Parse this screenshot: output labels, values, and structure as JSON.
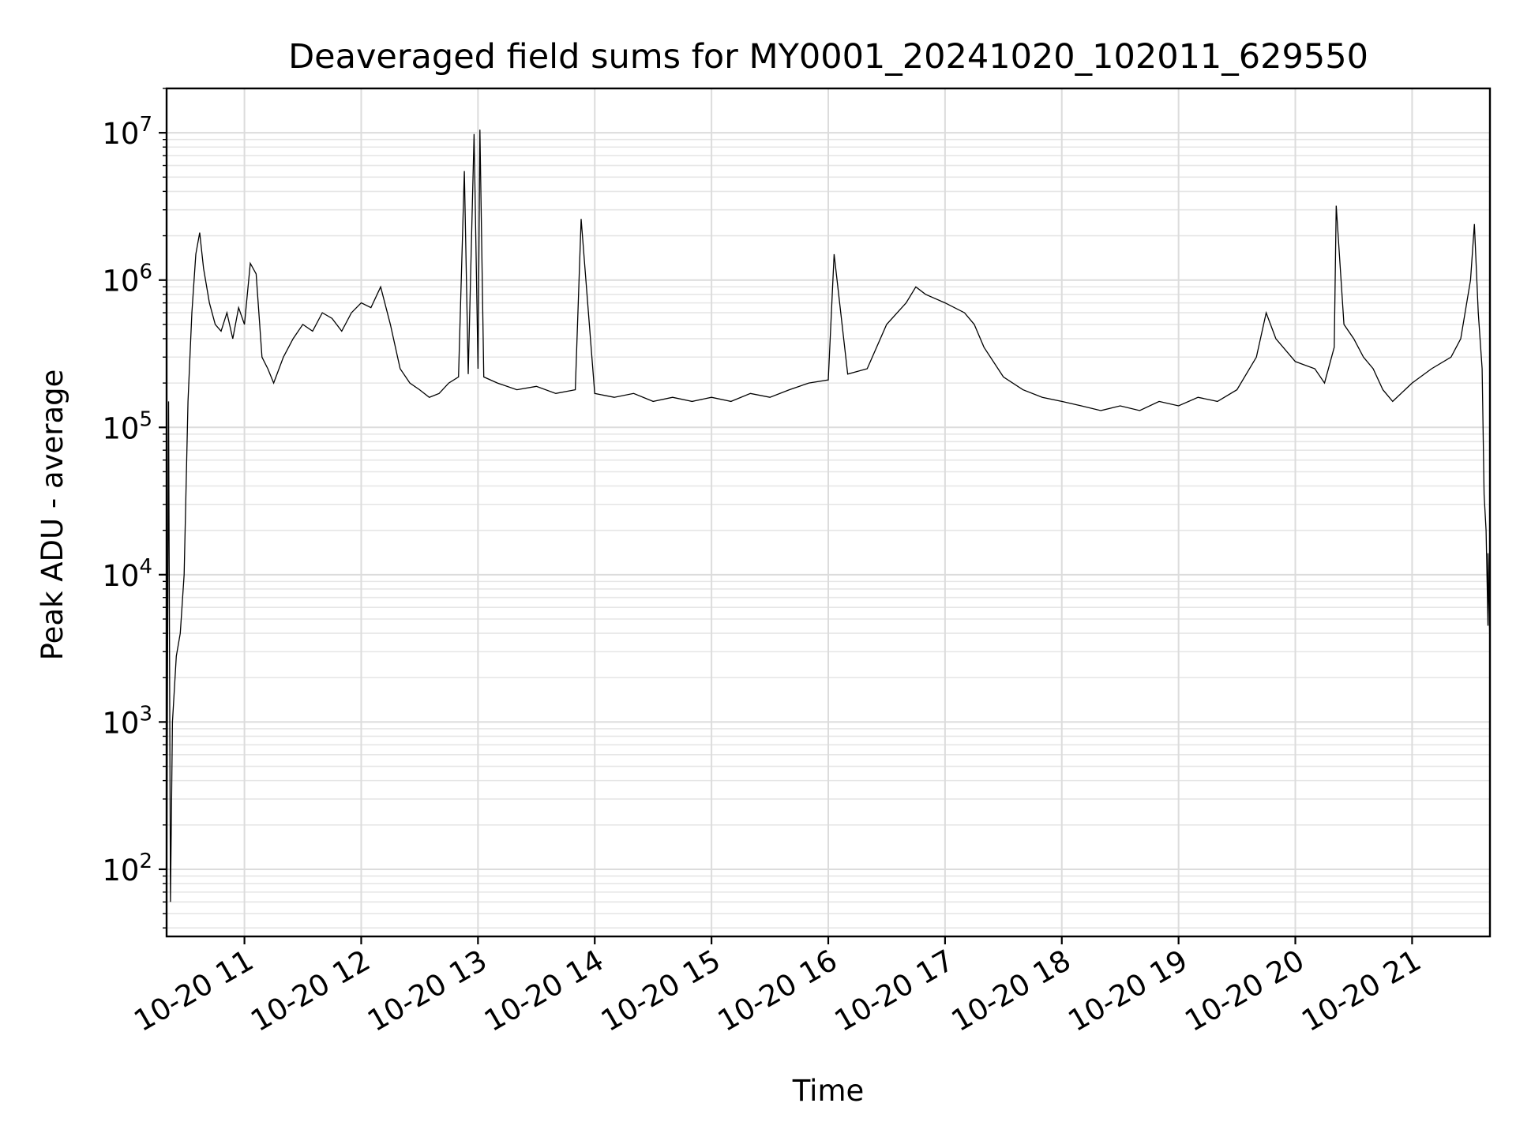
{
  "chart_data": {
    "type": "line",
    "title": "Deaveraged field sums for MY0001_20241020_102011_629550",
    "xlabel": "Time",
    "ylabel": "Peak ADU - average",
    "yscale": "log",
    "ylim": [
      35,
      20000000
    ],
    "xlim": [
      "2024-10-20 10:20",
      "2024-10-20 21:40"
    ],
    "grid": "major and minor",
    "x_tick_labels": [
      "10-20 11",
      "10-20 12",
      "10-20 13",
      "10-20 14",
      "10-20 15",
      "10-20 16",
      "10-20 17",
      "10-20 18",
      "10-20 19",
      "10-20 20",
      "10-20 21"
    ],
    "y_tick_labels": [
      {
        "base": "10",
        "exp": "2"
      },
      {
        "base": "10",
        "exp": "3"
      },
      {
        "base": "10",
        "exp": "4"
      },
      {
        "base": "10",
        "exp": "5"
      },
      {
        "base": "10",
        "exp": "6"
      },
      {
        "base": "10",
        "exp": "7"
      }
    ],
    "series": [
      {
        "color": "#000000",
        "points": [
          [
            "10-20 10:20",
            40
          ],
          [
            "10-20 10:21",
            150000
          ],
          [
            "10-20 10:22",
            60
          ],
          [
            "10-20 10:23",
            1000
          ],
          [
            "10-20 10:25",
            2800
          ],
          [
            "10-20 10:27",
            4000
          ],
          [
            "10-20 10:29",
            10000
          ],
          [
            "10-20 10:31",
            150000
          ],
          [
            "10-20 10:33",
            600000
          ],
          [
            "10-20 10:35",
            1500000
          ],
          [
            "10-20 10:37",
            2100000
          ],
          [
            "10-20 10:39",
            1200000
          ],
          [
            "10-20 10:42",
            700000
          ],
          [
            "10-20 10:45",
            500000
          ],
          [
            "10-20 10:48",
            450000
          ],
          [
            "10-20 10:51",
            600000
          ],
          [
            "10-20 10:54",
            400000
          ],
          [
            "10-20 10:57",
            650000
          ],
          [
            "10-20 11:00",
            500000
          ],
          [
            "10-20 11:03",
            1300000
          ],
          [
            "10-20 11:06",
            1100000
          ],
          [
            "10-20 11:09",
            300000
          ],
          [
            "10-20 11:12",
            250000
          ],
          [
            "10-20 11:15",
            200000
          ],
          [
            "10-20 11:20",
            300000
          ],
          [
            "10-20 11:25",
            400000
          ],
          [
            "10-20 11:30",
            500000
          ],
          [
            "10-20 11:35",
            450000
          ],
          [
            "10-20 11:40",
            600000
          ],
          [
            "10-20 11:45",
            550000
          ],
          [
            "10-20 11:50",
            450000
          ],
          [
            "10-20 11:55",
            600000
          ],
          [
            "10-20 12:00",
            700000
          ],
          [
            "10-20 12:05",
            650000
          ],
          [
            "10-20 12:10",
            900000
          ],
          [
            "10-20 12:15",
            500000
          ],
          [
            "10-20 12:20",
            250000
          ],
          [
            "10-20 12:25",
            200000
          ],
          [
            "10-20 12:30",
            180000
          ],
          [
            "10-20 12:35",
            160000
          ],
          [
            "10-20 12:40",
            170000
          ],
          [
            "10-20 12:45",
            200000
          ],
          [
            "10-20 12:50",
            220000
          ],
          [
            "10-20 12:53",
            5500000
          ],
          [
            "10-20 12:55",
            230000
          ],
          [
            "10-20 12:58",
            9800000
          ],
          [
            "10-20 13:00",
            250000
          ],
          [
            "10-20 13:01",
            10500000
          ],
          [
            "10-20 13:03",
            220000
          ],
          [
            "10-20 13:10",
            200000
          ],
          [
            "10-20 13:20",
            180000
          ],
          [
            "10-20 13:30",
            190000
          ],
          [
            "10-20 13:40",
            170000
          ],
          [
            "10-20 13:50",
            180000
          ],
          [
            "10-20 13:53",
            2600000
          ],
          [
            "10-20 14:00",
            170000
          ],
          [
            "10-20 14:10",
            160000
          ],
          [
            "10-20 14:20",
            170000
          ],
          [
            "10-20 14:30",
            150000
          ],
          [
            "10-20 14:40",
            160000
          ],
          [
            "10-20 14:50",
            150000
          ],
          [
            "10-20 15:00",
            160000
          ],
          [
            "10-20 15:10",
            150000
          ],
          [
            "10-20 15:20",
            170000
          ],
          [
            "10-20 15:30",
            160000
          ],
          [
            "10-20 15:40",
            180000
          ],
          [
            "10-20 15:50",
            200000
          ],
          [
            "10-20 16:00",
            210000
          ],
          [
            "10-20 16:03",
            1500000
          ],
          [
            "10-20 16:10",
            230000
          ],
          [
            "10-20 16:20",
            250000
          ],
          [
            "10-20 16:30",
            500000
          ],
          [
            "10-20 16:40",
            700000
          ],
          [
            "10-20 16:45",
            900000
          ],
          [
            "10-20 16:50",
            800000
          ],
          [
            "10-20 17:00",
            700000
          ],
          [
            "10-20 17:10",
            600000
          ],
          [
            "10-20 17:15",
            500000
          ],
          [
            "10-20 17:20",
            350000
          ],
          [
            "10-20 17:30",
            220000
          ],
          [
            "10-20 17:40",
            180000
          ],
          [
            "10-20 17:50",
            160000
          ],
          [
            "10-20 18:00",
            150000
          ],
          [
            "10-20 18:10",
            140000
          ],
          [
            "10-20 18:20",
            130000
          ],
          [
            "10-20 18:30",
            140000
          ],
          [
            "10-20 18:40",
            130000
          ],
          [
            "10-20 18:50",
            150000
          ],
          [
            "10-20 19:00",
            140000
          ],
          [
            "10-20 19:10",
            160000
          ],
          [
            "10-20 19:20",
            150000
          ],
          [
            "10-20 19:30",
            180000
          ],
          [
            "10-20 19:40",
            300000
          ],
          [
            "10-20 19:45",
            600000
          ],
          [
            "10-20 19:50",
            400000
          ],
          [
            "10-20 20:00",
            280000
          ],
          [
            "10-20 20:10",
            250000
          ],
          [
            "10-20 20:15",
            200000
          ],
          [
            "10-20 20:20",
            350000
          ],
          [
            "10-20 20:21",
            3200000
          ],
          [
            "10-20 20:25",
            500000
          ],
          [
            "10-20 20:30",
            400000
          ],
          [
            "10-20 20:35",
            300000
          ],
          [
            "10-20 20:40",
            250000
          ],
          [
            "10-20 20:45",
            180000
          ],
          [
            "10-20 20:50",
            150000
          ],
          [
            "10-20 21:00",
            200000
          ],
          [
            "10-20 21:10",
            250000
          ],
          [
            "10-20 21:20",
            300000
          ],
          [
            "10-20 21:25",
            400000
          ],
          [
            "10-20 21:30",
            1000000
          ],
          [
            "10-20 21:32",
            2400000
          ],
          [
            "10-20 21:34",
            600000
          ],
          [
            "10-20 21:36",
            250000
          ],
          [
            "10-20 21:37",
            35000
          ],
          [
            "10-20 21:38",
            20000
          ],
          [
            "10-20 21:39",
            4500
          ],
          [
            "10-20 21:39",
            14000
          ],
          [
            "10-20 21:40",
            3300
          ]
        ]
      }
    ]
  }
}
